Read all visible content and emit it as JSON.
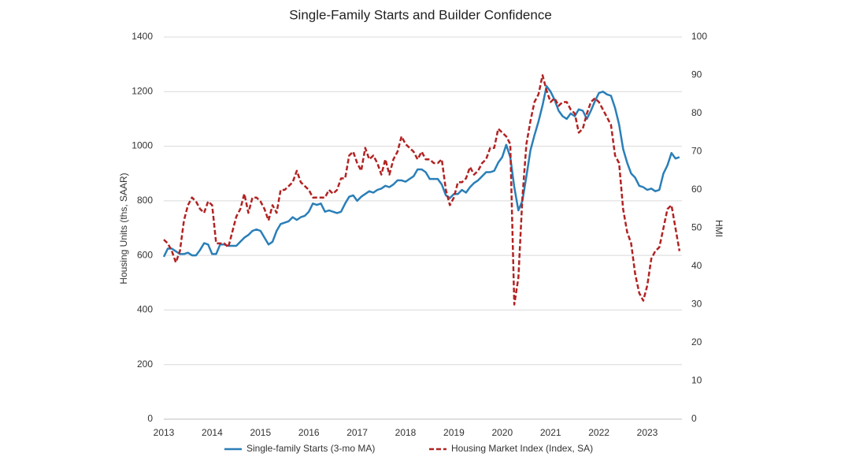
{
  "chart_data": {
    "type": "line",
    "title": "Single-Family Starts and Builder Confidence",
    "y_label": "Housing Units (ths, SAAR)",
    "y2_label": "HMI",
    "categories": [
      "2013",
      null,
      null,
      null,
      null,
      null,
      null,
      null,
      null,
      null,
      null,
      null,
      "2014",
      null,
      null,
      null,
      null,
      null,
      null,
      null,
      null,
      null,
      null,
      null,
      "2015",
      null,
      null,
      null,
      null,
      null,
      null,
      null,
      null,
      null,
      null,
      null,
      "2016",
      null,
      null,
      null,
      null,
      null,
      null,
      null,
      null,
      null,
      null,
      null,
      "2017",
      null,
      null,
      null,
      null,
      null,
      null,
      null,
      null,
      null,
      null,
      null,
      "2018",
      null,
      null,
      null,
      null,
      null,
      null,
      null,
      null,
      null,
      null,
      null,
      "2019",
      null,
      null,
      null,
      null,
      null,
      null,
      null,
      null,
      null,
      null,
      null,
      "2020",
      null,
      null,
      null,
      null,
      null,
      null,
      null,
      null,
      null,
      null,
      null,
      "2021",
      null,
      null,
      null,
      null,
      null,
      null,
      null,
      null,
      null,
      null,
      null,
      "2022",
      null,
      null,
      null,
      null,
      null,
      null,
      null,
      null,
      null,
      null,
      null,
      "2023",
      null,
      null,
      null,
      null,
      null,
      null,
      null,
      null
    ],
    "series": [
      {
        "name": "Single-family Starts (3-mo MA)",
        "color": "#2a7fb8",
        "axis": "y",
        "values": [
          595,
          625,
          625,
          615,
          605,
          605,
          610,
          600,
          600,
          620,
          645,
          640,
          605,
          605,
          640,
          640,
          635,
          635,
          635,
          650,
          665,
          675,
          690,
          695,
          690,
          665,
          640,
          650,
          690,
          715,
          720,
          725,
          740,
          730,
          740,
          745,
          760,
          790,
          785,
          790,
          760,
          765,
          760,
          755,
          760,
          790,
          815,
          820,
          800,
          815,
          825,
          835,
          830,
          840,
          845,
          855,
          850,
          860,
          875,
          875,
          870,
          880,
          890,
          915,
          915,
          905,
          880,
          880,
          880,
          860,
          820,
          810,
          825,
          825,
          840,
          830,
          850,
          865,
          875,
          890,
          905,
          905,
          910,
          940,
          960,
          1005,
          960,
          850,
          765,
          800,
          890,
          985,
          1040,
          1090,
          1150,
          1220,
          1200,
          1170,
          1130,
          1110,
          1100,
          1120,
          1110,
          1135,
          1130,
          1100,
          1130,
          1165,
          1195,
          1200,
          1190,
          1185,
          1140,
          1080,
          990,
          940,
          900,
          885,
          855,
          850,
          840,
          845,
          835,
          840,
          900,
          930,
          975,
          955,
          960
        ]
      },
      {
        "name": "Housing Market Index (Index, SA)",
        "color": "#b22222",
        "axis": "y2",
        "dashed": true,
        "values": [
          47,
          46,
          44,
          41,
          44,
          52,
          56,
          58,
          57,
          55,
          54,
          57,
          56,
          46,
          46,
          46,
          45,
          49,
          53,
          55,
          59,
          54,
          58,
          58,
          57,
          55,
          52,
          56,
          54,
          60,
          60,
          61,
          62,
          65,
          62,
          61,
          60,
          58,
          58,
          58,
          58,
          60,
          59,
          60,
          63,
          63,
          69,
          70,
          67,
          65,
          71,
          68,
          69,
          67,
          64,
          68,
          64,
          68,
          70,
          74,
          72,
          71,
          70,
          68,
          70,
          68,
          68,
          67,
          67,
          68,
          60,
          56,
          58,
          62,
          62,
          63,
          66,
          64,
          65,
          67,
          68,
          71,
          71,
          76,
          75,
          74,
          72,
          30,
          37,
          58,
          72,
          78,
          83,
          85,
          90,
          86,
          83,
          84,
          82,
          83,
          83,
          81,
          80,
          75,
          76,
          80,
          83,
          84,
          83,
          81,
          79,
          77,
          69,
          67,
          55,
          49,
          46,
          38,
          33,
          31,
          35,
          42,
          44,
          45,
          50,
          55,
          56,
          50,
          44
        ]
      }
    ],
    "ylim": [
      0,
      1400
    ],
    "yticks": [
      0,
      200,
      400,
      600,
      800,
      1000,
      1200,
      1400
    ],
    "y2lim": [
      0,
      100
    ],
    "y2ticks": [
      0,
      10,
      20,
      30,
      40,
      50,
      60,
      70,
      80,
      90,
      100
    ],
    "grid": true
  }
}
